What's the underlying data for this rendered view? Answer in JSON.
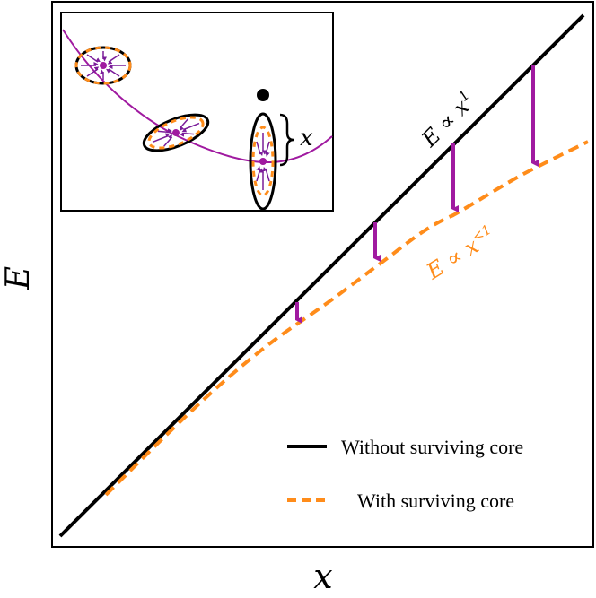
{
  "chart_data": {
    "type": "line",
    "xlabel": "x",
    "ylabel": "E",
    "grid": false,
    "ticks": false,
    "legend_position": "bottom-right",
    "series": [
      {
        "name": "Without surviving core",
        "style": "solid",
        "color": "#000000"
      },
      {
        "name": "With surviving core",
        "style": "dashed",
        "color": "#ff8c1a"
      }
    ],
    "annotations": {
      "linear_label": {
        "base": "E ∝ x",
        "exp": "1",
        "color": "#000000"
      },
      "sublinear_label": {
        "base": "E ∝ x",
        "exp": "<1",
        "color": "#ff8c1a"
      }
    },
    "arrow_color": "#a01aa0",
    "inset": {
      "curve_color": "#a01aa0",
      "bracket_label": "x"
    }
  }
}
